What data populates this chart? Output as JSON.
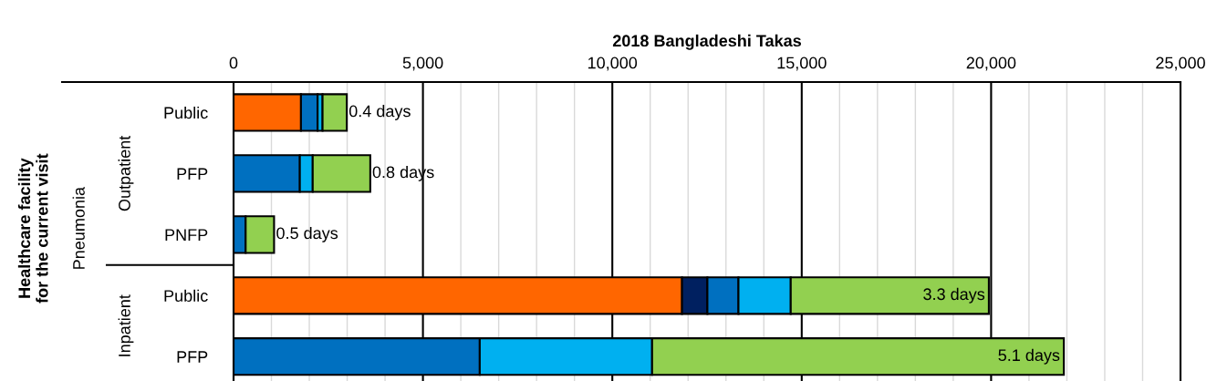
{
  "chart_data": {
    "type": "bar",
    "orientation": "horizontal",
    "stacked": true,
    "xlabel": "2018 Bangladeshi Takas",
    "categories": [
      "Public",
      "PFP",
      "PNFP",
      "Public",
      "PFP"
    ],
    "series": [
      {
        "color": "#ff6600",
        "values": [
          1780,
          null,
          null,
          11840,
          null
        ]
      },
      {
        "color": "#002060",
        "values": [
          null,
          null,
          null,
          670,
          null
        ]
      },
      {
        "color": "#0070c0",
        "values": [
          440,
          1750,
          320,
          820,
          6500
        ]
      },
      {
        "color": "#00b0f0",
        "values": [
          130,
          340,
          null,
          1380,
          4550
        ]
      },
      {
        "color": "#92d050",
        "values": [
          640,
          1520,
          750,
          5230,
          10870
        ]
      }
    ],
    "xlim": [
      0,
      25000
    ],
    "xticks": [
      {
        "value": 0,
        "label": "0"
      },
      {
        "value": 5000,
        "label": "5,000"
      },
      {
        "value": 10000,
        "label": "10,000"
      },
      {
        "value": 15000,
        "label": "15,000"
      },
      {
        "value": 20000,
        "label": "20,000"
      },
      {
        "value": 25000,
        "label": "25,000"
      }
    ],
    "grid": "x",
    "annotations": [
      "Healthcare facility for the current visit",
      "Pneumonia",
      "Outpatient",
      "Inpatient",
      "0.4 days",
      "0.8 days",
      "0.5 days",
      "3.3 days",
      "5.1 days"
    ]
  }
}
